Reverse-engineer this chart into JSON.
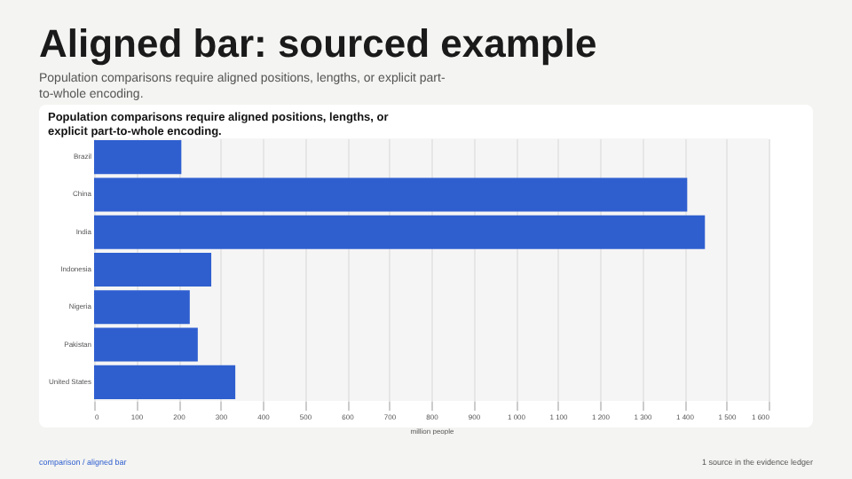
{
  "chart_data": {
    "type": "bar",
    "orientation": "horizontal",
    "title": "Aligned bar: sourced example",
    "subtitle": "Population comparisons require aligned positions, lengths, or explicit part-to-whole encoding.",
    "annotations": [
      "Population comparisons require aligned positions, lengths, or explicit part-to-whole encoding.",
      "comparison / aligned bar",
      "1 source in the evidence ledger"
    ],
    "xlabel": "million people",
    "categories": [
      "Brazil",
      "China",
      "India",
      "Indonesia",
      "Nigeria",
      "Pakistan",
      "United States"
    ],
    "values": [
      207,
      1407,
      1449,
      278,
      227,
      246,
      335
    ],
    "color": "#2f5fcf",
    "xlim": [
      0,
      1600
    ],
    "xticks": [
      0,
      100,
      200,
      300,
      400,
      500,
      600,
      700,
      800,
      900,
      {
        "value": 1000,
        "label": "1 000"
      },
      {
        "value": 1100,
        "label": "1 100"
      },
      {
        "value": 1200,
        "label": "1 200"
      },
      {
        "value": 1300,
        "label": "1 300"
      },
      {
        "value": 1400,
        "label": "1 400"
      },
      {
        "value": 1500,
        "label": "1 500"
      },
      {
        "value": 1600,
        "label": "1 600"
      }
    ],
    "grid": "x"
  }
}
